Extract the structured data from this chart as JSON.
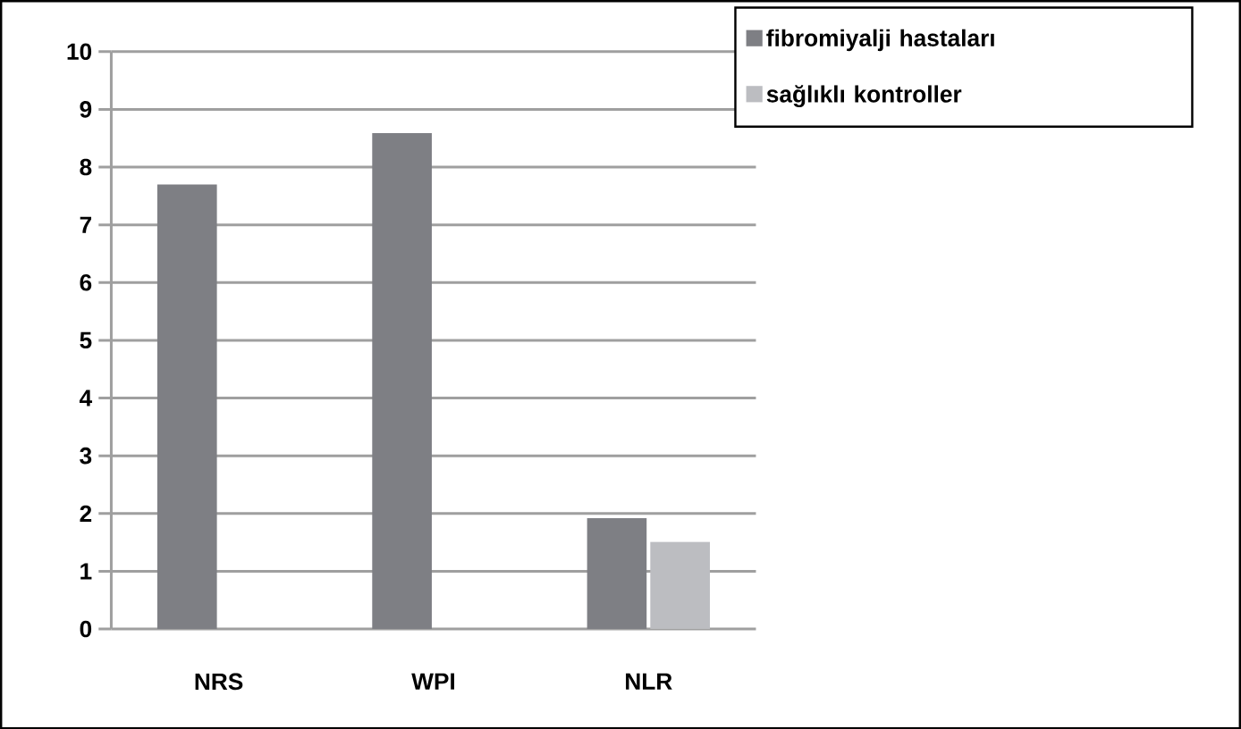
{
  "chart_data": {
    "type": "bar",
    "categories": [
      "NRS",
      "WPI",
      "NLR"
    ],
    "series": [
      {
        "name": "fibromiyalji hastaları",
        "color": "#7e7f84",
        "values": [
          7.7,
          8.59,
          1.92
        ]
      },
      {
        "name": "sağlıklı kontroller",
        "color": "#bcbdc1",
        "values": [
          null,
          null,
          1.51
        ]
      }
    ],
    "ylim": [
      0,
      10
    ],
    "yticks": [
      0,
      1,
      2,
      3,
      4,
      5,
      6,
      7,
      8,
      9,
      10
    ],
    "grid": "y",
    "legend": "top right"
  }
}
